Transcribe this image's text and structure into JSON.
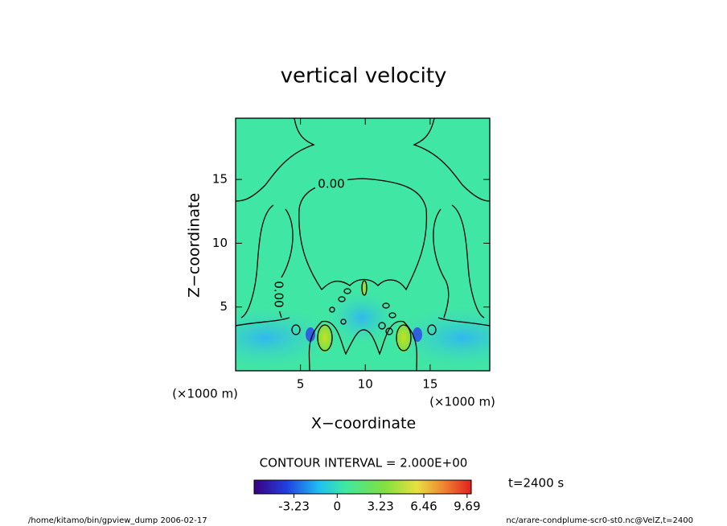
{
  "chart_data": {
    "type": "contour",
    "title": "vertical velocity",
    "xlabel": "X−coordinate",
    "ylabel": "Z−coordinate",
    "x_unit": "(×1000 m)",
    "y_unit": "(×1000 m)",
    "xlim": [
      0,
      19.6
    ],
    "xticks": [
      5,
      10,
      15
    ],
    "ylim": [
      0,
      19.8
    ],
    "yticks": [
      5,
      10,
      15
    ],
    "contour_labels": [
      "0.00",
      "0.00"
    ],
    "contour_interval": "CONTOUR INTERVAL = 2.000E+00",
    "colorbar": {
      "lim": [
        -6.2,
        10
      ],
      "ticks": [
        -3.23,
        0,
        3.23,
        6.46,
        9.69
      ]
    },
    "time_label": "t=2400 s",
    "footer_left": "/home/kitamo/bin/gpview_dump  2006-02-17",
    "footer_right": "nc/arare-condplume-scr0-st0.nc@VelZ,t=2400"
  }
}
